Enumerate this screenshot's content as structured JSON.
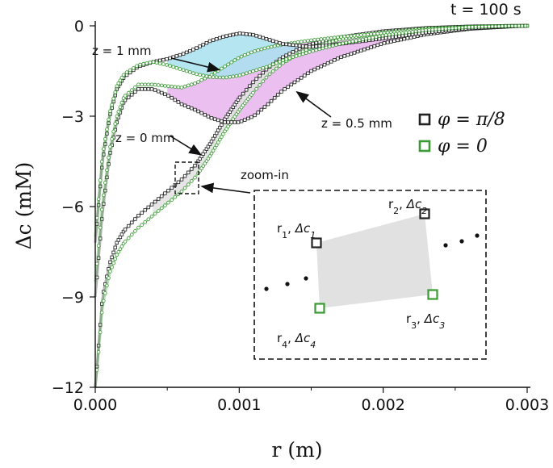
{
  "chart_data": {
    "type": "line",
    "title": "",
    "annotation_time": "t = 100 s",
    "xlabel": "r (m)",
    "ylabel": "Δc (mM)",
    "xlim": [
      -5e-05,
      0.003
    ],
    "ylim": [
      -12,
      0
    ],
    "xticks": [
      0.0,
      0.001,
      0.002,
      0.003
    ],
    "xtick_labels": [
      "0.000",
      "0.001",
      "0.002",
      "0.003"
    ],
    "yticks": [
      0,
      -3,
      -6,
      -9,
      -12
    ],
    "ytick_labels": [
      "0",
      "−3",
      "−6",
      "−9",
      "−12"
    ],
    "legend": [
      {
        "label": "φ = π/8",
        "color": "#222222"
      },
      {
        "label": "φ = 0",
        "color": "#3a9a34"
      }
    ],
    "series": [
      {
        "name": "z = 0 mm, φ = π/8",
        "z": "0 mm",
        "phi": "π/8",
        "color": "#222222",
        "x": [
          0.0,
          2e-05,
          5e-05,
          0.0001,
          0.00015,
          0.0002,
          0.0003,
          0.0004,
          0.0005,
          0.0006,
          0.0007,
          0.0008,
          0.0009,
          0.001,
          0.0011,
          0.0012,
          0.0013,
          0.0014,
          0.0015,
          0.0017,
          0.002,
          0.0023,
          0.0026,
          0.0029,
          0.003
        ],
        "y": [
          -12.0,
          -10.8,
          -9.0,
          -7.9,
          -7.2,
          -6.8,
          -6.3,
          -5.9,
          -5.5,
          -5.1,
          -4.6,
          -3.9,
          -3.1,
          -2.4,
          -1.85,
          -1.4,
          -1.05,
          -0.8,
          -0.6,
          -0.38,
          -0.18,
          -0.07,
          -0.02,
          0.0,
          0.0
        ]
      },
      {
        "name": "z = 0 mm, φ = 0",
        "z": "0 mm",
        "phi": "0",
        "color": "#3a9a34",
        "x": [
          0.0,
          2e-05,
          5e-05,
          0.0001,
          0.00015,
          0.0002,
          0.0003,
          0.0004,
          0.0005,
          0.0006,
          0.0007,
          0.0008,
          0.0009,
          0.001,
          0.0011,
          0.0012,
          0.0013,
          0.0014,
          0.0015,
          0.0017,
          0.002,
          0.0023,
          0.0026,
          0.0029,
          0.003
        ],
        "y": [
          -12.0,
          -11.0,
          -9.3,
          -8.2,
          -7.6,
          -7.2,
          -6.7,
          -6.3,
          -5.9,
          -5.5,
          -5.0,
          -4.3,
          -3.5,
          -2.8,
          -2.2,
          -1.65,
          -1.25,
          -0.95,
          -0.72,
          -0.45,
          -0.22,
          -0.09,
          -0.03,
          0.0,
          0.0
        ]
      },
      {
        "name": "z = 0.5 mm, φ = π/8",
        "z": "0.5 mm",
        "phi": "π/8",
        "color": "#222222",
        "x": [
          0.0,
          5e-05,
          0.0001,
          0.00015,
          0.0002,
          0.0003,
          0.0004,
          0.0005,
          0.0006,
          0.0007,
          0.0008,
          0.0009,
          0.001,
          0.0011,
          0.0012,
          0.0013,
          0.0015,
          0.0017,
          0.002,
          0.0023,
          0.0026,
          0.0029,
          0.003
        ],
        "y": [
          -9.0,
          -6.2,
          -4.3,
          -3.2,
          -2.5,
          -2.1,
          -2.1,
          -2.3,
          -2.6,
          -2.8,
          -3.05,
          -3.2,
          -3.2,
          -3.0,
          -2.6,
          -2.15,
          -1.5,
          -1.05,
          -0.58,
          -0.28,
          -0.1,
          -0.02,
          0.0
        ]
      },
      {
        "name": "z = 0.5 mm, φ = 0",
        "z": "0.5 mm",
        "phi": "0",
        "color": "#3a9a34",
        "x": [
          0.0,
          5e-05,
          0.0001,
          0.00015,
          0.0002,
          0.0003,
          0.0004,
          0.0005,
          0.0006,
          0.0007,
          0.0008,
          0.0009,
          0.001,
          0.0011,
          0.0012,
          0.0013,
          0.0015,
          0.0017,
          0.002,
          0.0023,
          0.0026,
          0.0029,
          0.003
        ],
        "y": [
          -8.5,
          -5.9,
          -4.1,
          -3.0,
          -2.35,
          -1.95,
          -1.95,
          -2.0,
          -2.05,
          -1.9,
          -1.65,
          -1.35,
          -1.05,
          -0.85,
          -0.72,
          -0.62,
          -0.48,
          -0.37,
          -0.24,
          -0.13,
          -0.05,
          -0.01,
          0.0
        ]
      },
      {
        "name": "z = 1 mm, φ = π/8",
        "z": "1 mm",
        "phi": "π/8",
        "color": "#222222",
        "x": [
          0.0,
          5e-05,
          0.0001,
          0.00015,
          0.0002,
          0.0003,
          0.0004,
          0.0005,
          0.0006,
          0.0007,
          0.0008,
          0.0009,
          0.001,
          0.0011,
          0.0012,
          0.0013,
          0.0015,
          0.0017,
          0.002,
          0.0023,
          0.0026,
          0.0029,
          0.003
        ],
        "y": [
          -7.2,
          -4.5,
          -3.0,
          -2.1,
          -1.7,
          -1.35,
          -1.2,
          -1.1,
          -0.95,
          -0.75,
          -0.5,
          -0.35,
          -0.25,
          -0.3,
          -0.45,
          -0.6,
          -0.7,
          -0.6,
          -0.42,
          -0.22,
          -0.08,
          -0.01,
          0.0
        ]
      },
      {
        "name": "z = 1 mm, φ = 0",
        "z": "1 mm",
        "phi": "0",
        "color": "#3a9a34",
        "x": [
          0.0,
          5e-05,
          0.0001,
          0.00015,
          0.0002,
          0.0003,
          0.0004,
          0.0005,
          0.0006,
          0.0007,
          0.0008,
          0.0009,
          0.001,
          0.0011,
          0.0012,
          0.0013,
          0.0015,
          0.0017,
          0.002,
          0.0023,
          0.0026,
          0.0029,
          0.003
        ],
        "y": [
          -7.0,
          -4.3,
          -2.9,
          -2.0,
          -1.6,
          -1.3,
          -1.2,
          -1.3,
          -1.45,
          -1.6,
          -1.7,
          -1.72,
          -1.65,
          -1.5,
          -1.35,
          -1.15,
          -0.85,
          -0.6,
          -0.32,
          -0.14,
          -0.04,
          -0.005,
          0.0
        ]
      }
    ],
    "annotations": [
      {
        "text": "z = 1 mm",
        "target_x": 0.00085,
        "target_y": -1.3
      },
      {
        "text": "z = 0.5 mm",
        "target_x": 0.0014,
        "target_y": -2.3
      },
      {
        "text": "z = 0 mm",
        "target_x": 0.0007,
        "target_y": -4.2
      },
      {
        "text": "zoom-in",
        "target_x": 0.00075,
        "target_y": -5.5
      }
    ],
    "inset": {
      "title": "zoom-in",
      "points": [
        {
          "label_r": "r",
          "label_sub": "1",
          "label_c": "Δc",
          "label_csub": "1",
          "phi": "π/8"
        },
        {
          "label_r": "r",
          "label_sub": "2",
          "label_c": "Δc",
          "label_csub": "2",
          "phi": "π/8"
        },
        {
          "label_r": "r",
          "label_sub": "3",
          "label_c": "Δc",
          "label_csub": "3",
          "phi": "0"
        },
        {
          "label_r": "r",
          "label_sub": "4",
          "label_c": "Δc",
          "label_csub": "4",
          "phi": "0"
        }
      ]
    }
  }
}
